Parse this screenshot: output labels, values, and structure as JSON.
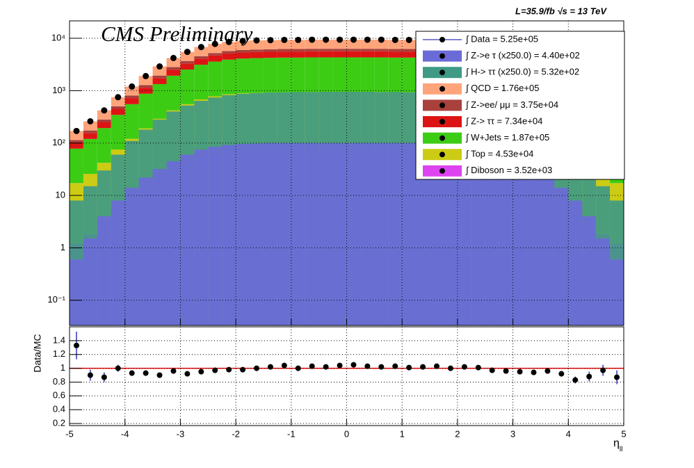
{
  "chart_data": [
    {
      "type": "histogram",
      "title": "CMS Preliminary",
      "subtitle": "L=35.9/fb    √s = 13 TeV",
      "log_y": true,
      "grid": true,
      "xlim": [
        -5,
        5
      ],
      "xticks": [
        -5,
        -4,
        -3,
        -2,
        -1,
        0,
        1,
        2,
        3,
        4,
        5
      ],
      "ylim": [
        0.033,
        21500
      ],
      "yticks": [
        {
          "value": 0.1,
          "label": "10⁻¹"
        },
        1,
        10,
        {
          "value": 100,
          "label": "10²"
        },
        {
          "value": 1000,
          "label": "10³"
        },
        {
          "value": 10000,
          "label": "10⁴"
        }
      ],
      "bins": [
        -5,
        -4.75,
        -4.5,
        -4.25,
        -4,
        -3.75,
        -3.5,
        -3.25,
        -3,
        -2.75,
        -2.5,
        -2.25,
        -2,
        -1.75,
        -1.5,
        -1.25,
        -1,
        -0.75,
        -0.5,
        -0.25,
        0,
        0.25,
        0.5,
        0.75,
        1,
        1.25,
        1.5,
        1.75,
        2,
        2.25,
        2.5,
        2.75,
        3,
        3.25,
        3.5,
        3.75,
        4,
        4.25,
        4.5,
        4.75,
        5
      ],
      "series": [
        {
          "name": "∫ Data = 5.25e+05",
          "role": "data",
          "color": "#000000",
          "values": [
            170,
            260,
            420,
            750,
            1200,
            1900,
            2900,
            4200,
            5500,
            6800,
            7800,
            8500,
            8900,
            9100,
            9200,
            9300,
            9300,
            9400,
            9400,
            9400,
            9400,
            9400,
            9400,
            9300,
            9300,
            9200,
            9100,
            8900,
            8500,
            7800,
            6800,
            5500,
            4200,
            2900,
            1900,
            1200,
            750,
            420,
            260,
            170
          ]
        },
        {
          "name": "∫ Z->e τ (x250.0) = 4.40e+02",
          "role": "overlay",
          "color": "#6b6bd8",
          "values": [
            0.6,
            1.5,
            4,
            8,
            14,
            22,
            32,
            45,
            60,
            75,
            85,
            92,
            96,
            98,
            100,
            100,
            100,
            100,
            100,
            100,
            100,
            100,
            100,
            100,
            100,
            100,
            98,
            96,
            92,
            85,
            75,
            60,
            45,
            32,
            22,
            14,
            8,
            4,
            1.5,
            0.6
          ]
        },
        {
          "name": "∫ H-> ττ (x250.0) = 5.32e+02",
          "role": "overlay",
          "color": "#3f9a86",
          "values": [
            8,
            15,
            30,
            60,
            110,
            180,
            280,
            400,
            520,
            640,
            740,
            820,
            870,
            900,
            920,
            930,
            940,
            940,
            950,
            950,
            950,
            950,
            940,
            940,
            930,
            920,
            900,
            870,
            820,
            740,
            640,
            520,
            400,
            280,
            180,
            110,
            60,
            30,
            15,
            8
          ]
        },
        {
          "name": "∫ QCD = 1.76e+05",
          "role": "stack",
          "color": "#ffa47a",
          "values": [
            56,
            86,
            139,
            248,
            396,
            627,
            957,
            1386,
            1815,
            2244,
            2574,
            2805,
            2937,
            3003,
            3036,
            3069,
            3069,
            3102,
            3102,
            3102,
            3102,
            3102,
            3102,
            3069,
            3069,
            3036,
            3003,
            2937,
            2805,
            2574,
            2244,
            1815,
            1386,
            957,
            627,
            396,
            248,
            139,
            86,
            56
          ]
        },
        {
          "name": "∫ Z->ee/ μμ = 3.75e+04",
          "role": "stack",
          "color": "#a8403c",
          "values": [
            12,
            18,
            29,
            53,
            84,
            133,
            203,
            294,
            385,
            476,
            546,
            595,
            623,
            637,
            644,
            651,
            651,
            658,
            658,
            658,
            658,
            658,
            658,
            651,
            651,
            644,
            637,
            623,
            595,
            546,
            476,
            385,
            294,
            203,
            133,
            84,
            53,
            29,
            18,
            12
          ]
        },
        {
          "name": "∫ Z-> ττ = 7.34e+04",
          "role": "stack",
          "color": "#dd1414",
          "values": [
            24,
            36,
            59,
            105,
            168,
            266,
            406,
            588,
            770,
            952,
            1092,
            1190,
            1246,
            1274,
            1288,
            1302,
            1302,
            1316,
            1316,
            1316,
            1316,
            1316,
            1316,
            1302,
            1302,
            1288,
            1274,
            1246,
            1190,
            1092,
            952,
            770,
            588,
            406,
            266,
            168,
            105,
            59,
            36,
            24
          ]
        },
        {
          "name": "∫ W+Jets = 1.87e+05",
          "role": "stack",
          "color": "#3ccc14",
          "values": [
            61,
            94,
            151,
            270,
            432,
            684,
            1044,
            1512,
            1980,
            2448,
            2808,
            3060,
            3204,
            3276,
            3312,
            3348,
            3348,
            3384,
            3384,
            3384,
            3384,
            3384,
            3384,
            3348,
            3348,
            3312,
            3276,
            3204,
            3060,
            2808,
            2448,
            1980,
            1512,
            1044,
            684,
            432,
            270,
            151,
            94,
            61
          ]
        },
        {
          "name": "∫ Top = 4.53e+04",
          "role": "stack",
          "color": "#cccc14",
          "values": [
            16,
            24,
            39,
            70,
            112,
            177,
            270,
            391,
            512,
            632,
            725,
            791,
            828,
            846,
            856,
            865,
            865,
            874,
            874,
            874,
            874,
            874,
            874,
            865,
            865,
            856,
            846,
            828,
            791,
            725,
            632,
            512,
            391,
            270,
            177,
            112,
            70,
            39,
            24,
            16
          ]
        },
        {
          "name": "∫ Diboson = 3.52e+03",
          "role": "stack",
          "color": "#dd44f0",
          "values": [
            1.2,
            1.8,
            2.9,
            5.3,
            8.4,
            13,
            20,
            29,
            39,
            48,
            55,
            60,
            62,
            64,
            64,
            65,
            65,
            66,
            66,
            66,
            66,
            66,
            66,
            65,
            65,
            64,
            64,
            62,
            60,
            55,
            48,
            39,
            29,
            20,
            13,
            8.4,
            5.3,
            2.9,
            1.8,
            1.2
          ]
        }
      ]
    },
    {
      "type": "scatter",
      "y_label": "Data/MC",
      "x_label": "η",
      "x_label_sub": "ll",
      "grid": true,
      "reference": 1,
      "reference_color": "#ff0000",
      "color": "#000000",
      "xlim": [
        -5,
        5
      ],
      "xticks": [
        -5,
        -4,
        -3,
        -2,
        -1,
        0,
        1,
        2,
        3,
        4,
        5
      ],
      "ylim": [
        0.17,
        1.6
      ],
      "yticks": [
        0.2,
        0.4,
        0.6,
        0.8,
        1,
        1.2,
        1.4
      ],
      "x": [
        -4.875,
        -4.625,
        -4.375,
        -4.125,
        -3.875,
        -3.625,
        -3.375,
        -3.125,
        -2.875,
        -2.625,
        -2.375,
        -2.125,
        -1.875,
        -1.625,
        -1.375,
        -1.125,
        -0.875,
        -0.625,
        -0.375,
        -0.125,
        0.125,
        0.375,
        0.625,
        0.875,
        1.125,
        1.375,
        1.625,
        1.875,
        2.125,
        2.375,
        2.625,
        2.875,
        3.125,
        3.375,
        3.625,
        3.875,
        4.125,
        4.375,
        4.625,
        4.875
      ],
      "values": [
        1.33,
        0.9,
        0.87,
        1.0,
        0.93,
        0.93,
        0.9,
        0.96,
        0.92,
        0.95,
        0.97,
        0.98,
        0.98,
        1.0,
        1.02,
        1.04,
        1.0,
        1.03,
        1.02,
        1.04,
        1.05,
        1.03,
        1.02,
        1.03,
        1.01,
        1.02,
        1.03,
        1.0,
        1.02,
        1.01,
        0.97,
        0.96,
        0.95,
        0.94,
        0.96,
        0.92,
        0.83,
        0.88,
        0.97,
        0.87
      ],
      "errors": [
        0.2,
        0.08,
        0.07,
        0.05,
        0.04,
        0.03,
        0.03,
        0.02,
        0.02,
        0.02,
        0.02,
        0.02,
        0.02,
        0.02,
        0.02,
        0.02,
        0.02,
        0.02,
        0.02,
        0.02,
        0.02,
        0.02,
        0.02,
        0.02,
        0.02,
        0.02,
        0.02,
        0.02,
        0.02,
        0.02,
        0.02,
        0.02,
        0.02,
        0.03,
        0.03,
        0.04,
        0.05,
        0.07,
        0.08,
        0.1
      ]
    }
  ]
}
